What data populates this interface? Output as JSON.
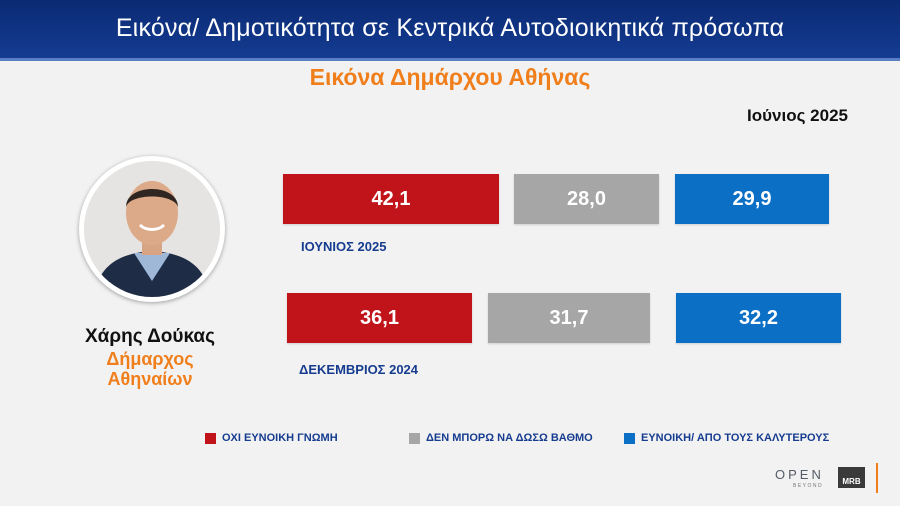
{
  "header": {
    "title": "Εικόνα/ Δημοτικότητα σε Κεντρικά Αυτοδιοικητικά πρόσωπα",
    "subtitle": "Εικόνα Δημάρχου Αθήνας",
    "date": "Ιούνιος 2025"
  },
  "person": {
    "name": "Χάρης Δούκας",
    "role_line1": "Δήμαρχος",
    "role_line2": "Αθηναίων"
  },
  "colors": {
    "negative": "#c0141a",
    "neutral": "#a6a6a6",
    "positive": "#0b6fc6",
    "accent": "#f07f1b",
    "header_bg": "#0b2a73"
  },
  "chart_data": {
    "type": "bar",
    "categories": [
      "ΙΟΥΝΙΟΣ 2025",
      "ΔΕΚΕΜΒΡΙΟΣ 2024"
    ],
    "series": [
      {
        "name": "ΟΧΙ ΕΥΝΟΙΚΗ ΓΝΩΜΗ",
        "values": [
          42.1,
          36.1
        ],
        "labels": [
          "42,1",
          "36,1"
        ]
      },
      {
        "name": "ΔΕΝ ΜΠΟΡΩ ΝΑ ΔΩΣΩ ΒΑΘΜΟ",
        "values": [
          28.0,
          31.7
        ],
        "labels": [
          "28,0",
          "31,7"
        ]
      },
      {
        "name": "ΕΥΝΟΙΚΗ/ ΑΠΟ ΤΟΥΣ ΚΑΛΥΤΕΡΟΥΣ",
        "values": [
          29.9,
          32.2
        ],
        "labels": [
          "29,9",
          "32,2"
        ]
      }
    ],
    "legend_position": "bottom"
  },
  "branding": {
    "open_text": "OPEN",
    "open_sub": "BEYOND",
    "mrb_text": "MRB"
  }
}
